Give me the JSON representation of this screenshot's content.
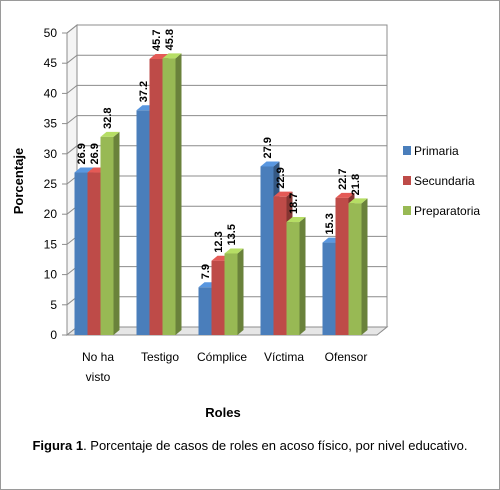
{
  "chart_data": {
    "type": "bar",
    "title": "",
    "xlabel": "Roles",
    "ylabel": "Porcentaje",
    "ylim": [
      0,
      50
    ],
    "yticks": [
      0,
      5,
      10,
      15,
      20,
      25,
      30,
      35,
      40,
      45,
      50
    ],
    "categories": [
      "No ha visto",
      "Testigo",
      "Cómplice",
      "Víctima",
      "Ofensor"
    ],
    "series": [
      {
        "name": "Primaria",
        "color": "#4a7ebb",
        "values": [
          26.9,
          37.2,
          7.9,
          27.9,
          15.3
        ]
      },
      {
        "name": "Secundaria",
        "color": "#be4b48",
        "values": [
          26.9,
          45.7,
          12.3,
          22.9,
          22.7
        ]
      },
      {
        "name": "Preparatoria",
        "color": "#98b954",
        "values": [
          32.8,
          45.8,
          13.5,
          18.7,
          21.8
        ]
      }
    ],
    "grid": true,
    "legend": "right",
    "chart_style": "3d-clustered-bar"
  },
  "caption": {
    "label": "Figura 1",
    "text": ". Porcentaje de casos de roles en acoso físico, por nivel educativo."
  }
}
